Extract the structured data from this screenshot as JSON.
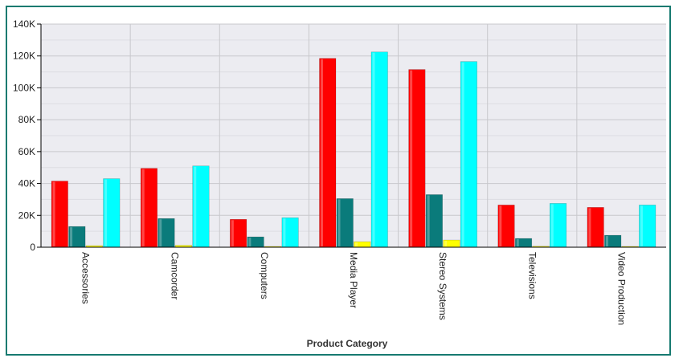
{
  "colors": {
    "frame": "#167a70",
    "plot_bg": "#ececf1",
    "grid": "#c8c8cc",
    "axis": "#000000"
  },
  "chart_data": {
    "type": "bar",
    "title": "",
    "xlabel": "Product Category",
    "ylabel": "",
    "ylim": [
      0,
      140000
    ],
    "yticks": [
      0,
      20000,
      40000,
      60000,
      80000,
      100000,
      120000,
      140000
    ],
    "ytick_labels": [
      "0",
      "20K",
      "40K",
      "60K",
      "80K",
      "100K",
      "120K",
      "140K"
    ],
    "grid": true,
    "legend": "none",
    "categories": [
      "Accessories",
      "Camcorder",
      "Computers",
      "Media Player",
      "Stereo Systems",
      "Televisions",
      "Video Production"
    ],
    "series": [
      {
        "color": "#ff0000",
        "values": [
          41500,
          49500,
          17500,
          118500,
          111500,
          26500,
          25000
        ]
      },
      {
        "color": "#0a7b7b",
        "values": [
          13000,
          18000,
          6500,
          30500,
          33000,
          5500,
          7500
        ]
      },
      {
        "color": "#ffff00",
        "values": [
          1000,
          1200,
          500,
          3500,
          4500,
          600,
          500
        ]
      },
      {
        "color": "#00ffff",
        "values": [
          43000,
          51000,
          18500,
          122500,
          116500,
          27500,
          26500
        ]
      }
    ]
  }
}
